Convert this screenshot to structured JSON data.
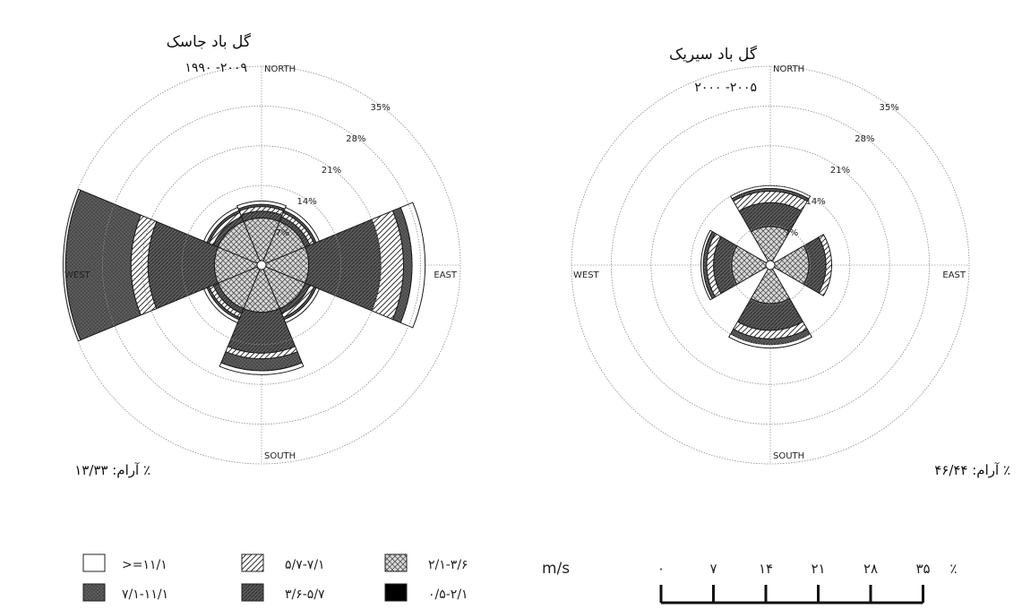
{
  "chart_data": [
    {
      "type": "wind-rose",
      "title": "گل باد جاسک",
      "period": "۱۹۹۰ -۲۰۰۹",
      "calm_label": "آرام: ۱۳/۳۳ ٪",
      "directions": [
        "NORTH",
        "EAST",
        "SOUTH",
        "WEST"
      ],
      "ring_labels": [
        "7%",
        "14%",
        "21%",
        "28%",
        "35%"
      ],
      "rmax": 35,
      "sectors": [
        {
          "dir": "NORTH",
          "angle": 0,
          "cumulative": [
            0.6,
            8.3,
            9.5,
            10.3,
            10.7,
            11.3
          ]
        },
        {
          "dir": "NE",
          "angle": 45,
          "cumulative": [
            0.6,
            8.3,
            9.2,
            10.0,
            10.4,
            11.0
          ]
        },
        {
          "dir": "EAST",
          "angle": 90,
          "cumulative": [
            0.6,
            8.3,
            21.0,
            25.0,
            26.5,
            28.8
          ]
        },
        {
          "dir": "SE",
          "angle": 135,
          "cumulative": [
            0.6,
            8.3,
            9.2,
            10.0,
            10.4,
            11.0
          ]
        },
        {
          "dir": "SOUTH",
          "angle": 180,
          "cumulative": [
            0.6,
            8.3,
            15.5,
            16.5,
            18.6,
            19.3
          ]
        },
        {
          "dir": "SW",
          "angle": 225,
          "cumulative": [
            0.6,
            8.3,
            9.2,
            10.0,
            10.4,
            11.0
          ]
        },
        {
          "dir": "WEST",
          "angle": 270,
          "cumulative": [
            0.6,
            8.3,
            20.0,
            23.0,
            34.5,
            34.9
          ]
        },
        {
          "dir": "NW",
          "angle": 315,
          "cumulative": [
            0.6,
            8.3,
            9.2,
            10.0,
            10.4,
            11.0
          ]
        }
      ]
    },
    {
      "type": "wind-rose",
      "title": "گل باد سیریک",
      "period": "۲۰۰۰ -۲۰۰۵",
      "calm_label": "آرام: ۴۶/۴۴ ٪",
      "directions": [
        "NORTH",
        "EAST",
        "SOUTH",
        "WEST"
      ],
      "ring_labels": [
        "7%",
        "14%",
        "21%",
        "28%",
        "35%"
      ],
      "rmax": 35,
      "sectors": [
        {
          "dir": "NORTH",
          "angle": 0,
          "cumulative": [
            0.5,
            6.8,
            11.0,
            13.0,
            13.5,
            14.0
          ]
        },
        {
          "dir": "EAST",
          "angle": 90,
          "cumulative": [
            0.5,
            6.8,
            9.8,
            10.8,
            10.8,
            10.8
          ]
        },
        {
          "dir": "SOUTH",
          "angle": 180,
          "cumulative": [
            0.5,
            6.8,
            11.5,
            13.0,
            14.0,
            14.6
          ]
        },
        {
          "dir": "WEST",
          "angle": 270,
          "cumulative": [
            0.5,
            6.8,
            10.0,
            11.2,
            11.8,
            12.2
          ]
        }
      ]
    }
  ],
  "legend": {
    "unit": "m/s",
    "items": [
      {
        "label": ">=۱۱/۱",
        "pattern": "white"
      },
      {
        "label": "۵/۷-۷/۱",
        "pattern": "diag"
      },
      {
        "label": "۲/۱-۳/۶",
        "pattern": "cross"
      },
      {
        "label": "۷/۱-۱۱/۱",
        "pattern": "dots"
      },
      {
        "label": "۳/۶-۵/۷",
        "pattern": "dense"
      },
      {
        "label": "۰/۵-۲/۱",
        "pattern": "black"
      }
    ]
  },
  "scale": {
    "labels": [
      "۰",
      "۷",
      "۱۴",
      "۲۱",
      "۲۸",
      "۳۵",
      "٪"
    ]
  }
}
